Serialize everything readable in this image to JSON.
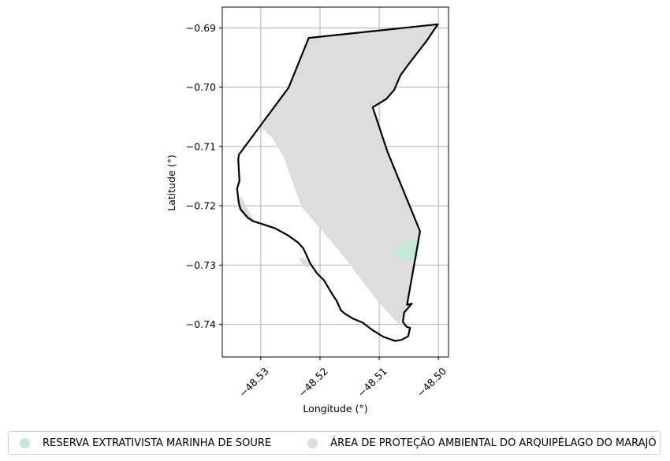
{
  "chart_data": {
    "type": "map",
    "xlabel": "Longitude (°)",
    "ylabel": "Latitude (°)",
    "xlim": [
      -48.5365,
      -48.4983
    ],
    "ylim": [
      -0.7455,
      -0.6865
    ],
    "x_ticks": [
      {
        "value": -48.53,
        "label": "−48.53"
      },
      {
        "value": -48.52,
        "label": "−48.52"
      },
      {
        "value": -48.51,
        "label": "−48.51"
      },
      {
        "value": -48.5,
        "label": "−48.50"
      }
    ],
    "y_ticks": [
      {
        "value": -0.69,
        "label": "−0.69"
      },
      {
        "value": -0.7,
        "label": "−0.70"
      },
      {
        "value": -0.71,
        "label": "−0.71"
      },
      {
        "value": -0.72,
        "label": "−0.72"
      },
      {
        "value": -0.73,
        "label": "−0.73"
      },
      {
        "value": -0.74,
        "label": "−0.74"
      }
    ],
    "grid": true,
    "legend_placement": "bottom",
    "layers": [
      {
        "name": "RESERVA EXTRATIVISTA MARINHA DE SOURE",
        "color": "#c6e6d8",
        "polygons": [
          [
            [
              -48.5078,
              -0.7283
            ],
            [
              -48.5075,
              -0.7272
            ],
            [
              -48.5065,
              -0.7264
            ],
            [
              -48.5048,
              -0.7257
            ],
            [
              -48.5032,
              -0.7254
            ],
            [
              -48.5036,
              -0.729
            ],
            [
              -48.505,
              -0.7292
            ],
            [
              -48.5065,
              -0.7289
            ]
          ],
          [
            [
              -48.5106,
              -0.7085
            ],
            [
              -48.5098,
              -0.7085
            ],
            [
              -48.5101,
              -0.7097
            ]
          ]
        ]
      },
      {
        "name": "ÁREA DE PROTEÇÃO AMBIENTAL DO ARQUIPÉLAGO DO MARAJÓ",
        "color": "#dddddd",
        "polygons": [
          [
            [
              -48.53,
              -0.7068
            ],
            [
              -48.5253,
              -0.7001
            ],
            [
              -48.5219,
              -0.6917
            ],
            [
              -48.5001,
              -0.6894
            ],
            [
              -48.502,
              -0.6922
            ],
            [
              -48.5048,
              -0.6958
            ],
            [
              -48.5064,
              -0.698
            ],
            [
              -48.5075,
              -0.7005
            ],
            [
              -48.5088,
              -0.702
            ],
            [
              -48.5111,
              -0.7034
            ],
            [
              -48.5086,
              -0.7109
            ],
            [
              -48.5031,
              -0.7243
            ],
            [
              -48.5053,
              -0.7367
            ],
            [
              -48.5066,
              -0.7401
            ],
            [
              -48.5099,
              -0.7365
            ],
            [
              -48.5165,
              -0.7279
            ],
            [
              -48.5231,
              -0.7202
            ],
            [
              -48.5249,
              -0.7153
            ],
            [
              -48.5262,
              -0.7116
            ],
            [
              -48.5281,
              -0.7085
            ]
          ],
          [
            [
              -48.5334,
              -0.7183
            ],
            [
              -48.5339,
              -0.7205
            ],
            [
              -48.5323,
              -0.7223
            ],
            [
              -48.5309,
              -0.7226
            ],
            [
              -48.5318,
              -0.7213
            ]
          ],
          [
            [
              -48.5236,
              -0.7288
            ],
            [
              -48.5224,
              -0.729
            ],
            [
              -48.5216,
              -0.7298
            ],
            [
              -48.522,
              -0.7305
            ],
            [
              -48.523,
              -0.73
            ]
          ]
        ]
      }
    ],
    "boundary": {
      "color": "#000000",
      "points": [
        [
          -48.5337,
          -0.7114
        ],
        [
          -48.5253,
          -0.7001
        ],
        [
          -48.5219,
          -0.6917
        ],
        [
          -48.5001,
          -0.6894
        ],
        [
          -48.502,
          -0.6922
        ],
        [
          -48.5048,
          -0.6958
        ],
        [
          -48.5064,
          -0.698
        ],
        [
          -48.5075,
          -0.7005
        ],
        [
          -48.5088,
          -0.702
        ],
        [
          -48.5111,
          -0.7034
        ],
        [
          -48.5086,
          -0.7109
        ],
        [
          -48.5031,
          -0.7243
        ],
        [
          -48.5053,
          -0.7367
        ],
        [
          -48.5045,
          -0.7365
        ],
        [
          -48.5058,
          -0.738
        ],
        [
          -48.506,
          -0.7396
        ],
        [
          -48.5054,
          -0.7404
        ],
        [
          -48.5048,
          -0.7406
        ],
        [
          -48.5051,
          -0.742
        ],
        [
          -48.5062,
          -0.7426
        ],
        [
          -48.5073,
          -0.7428
        ],
        [
          -48.5093,
          -0.7421
        ],
        [
          -48.5111,
          -0.741
        ],
        [
          -48.5128,
          -0.7397
        ],
        [
          -48.5145,
          -0.739
        ],
        [
          -48.5158,
          -0.7382
        ],
        [
          -48.5165,
          -0.7376
        ],
        [
          -48.5172,
          -0.736
        ],
        [
          -48.518,
          -0.7348
        ],
        [
          -48.5193,
          -0.7326
        ],
        [
          -48.5205,
          -0.7314
        ],
        [
          -48.5216,
          -0.7298
        ],
        [
          -48.5228,
          -0.7272
        ],
        [
          -48.5237,
          -0.7262
        ],
        [
          -48.5254,
          -0.725
        ],
        [
          -48.5276,
          -0.7238
        ],
        [
          -48.53,
          -0.723
        ],
        [
          -48.5313,
          -0.7226
        ],
        [
          -48.5322,
          -0.722
        ],
        [
          -48.5334,
          -0.7206
        ],
        [
          -48.5337,
          -0.7196
        ],
        [
          -48.534,
          -0.7171
        ],
        [
          -48.5336,
          -0.7158
        ],
        [
          -48.5337,
          -0.714
        ],
        [
          -48.5338,
          -0.7122
        ],
        [
          -48.5337,
          -0.7114
        ]
      ]
    }
  },
  "legend": {
    "items": [
      {
        "label": "RESERVA EXTRATIVISTA MARINHA DE SOURE",
        "color": "#c6e6d8"
      },
      {
        "label": "ÁREA DE PROTEÇÃO AMBIENTAL DO ARQUIPÉLAGO DO MARAJÓ",
        "color": "#dddddd"
      }
    ]
  }
}
